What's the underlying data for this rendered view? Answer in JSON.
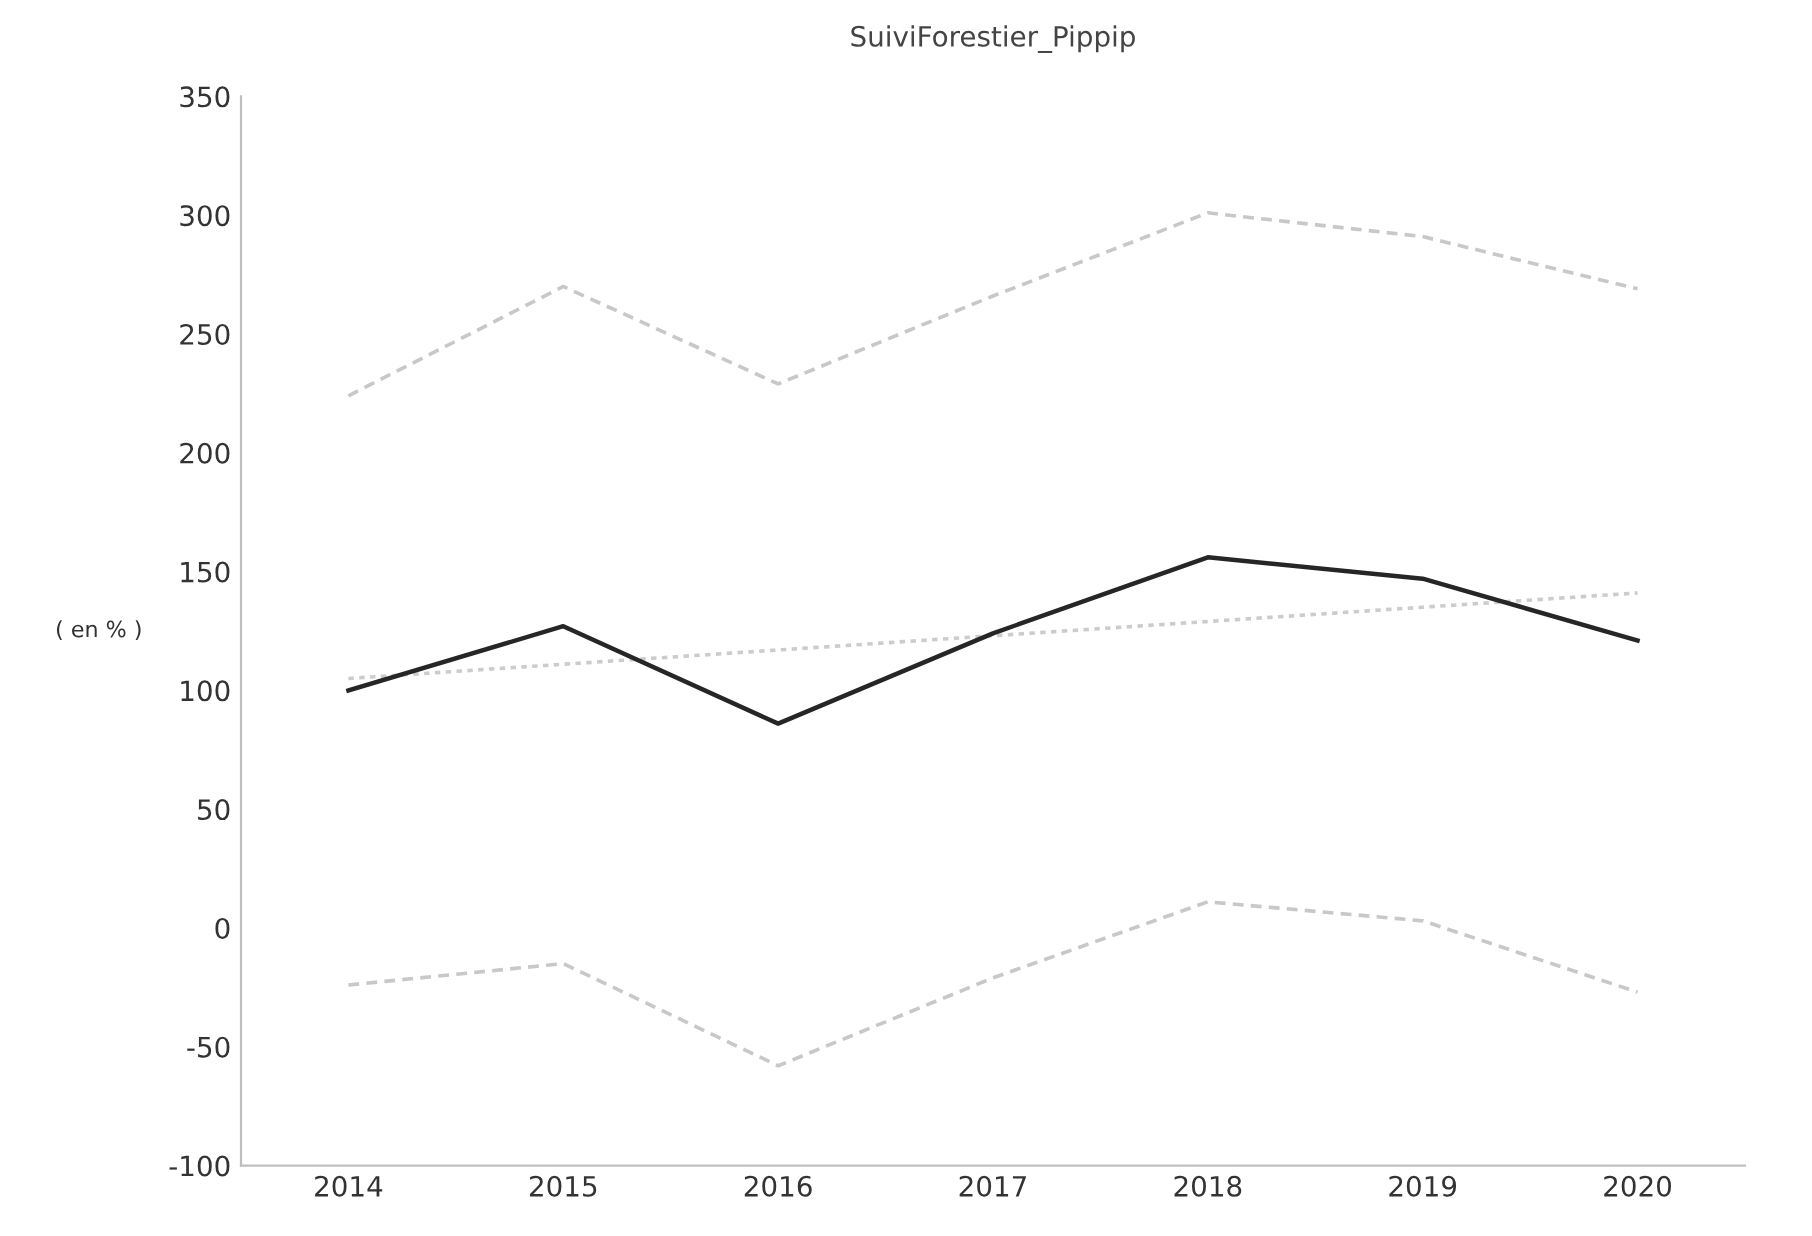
{
  "chart_data": {
    "type": "line",
    "title": "SuiviForestier_Pippip",
    "ylabel": "( en % )",
    "categories": [
      "2014",
      "2015",
      "2016",
      "2017",
      "2018",
      "2019",
      "2020"
    ],
    "series": [
      {
        "color": "#c8c8c8",
        "line_style": "dashed",
        "values": [
          224,
          270,
          229,
          266,
          301,
          291,
          269
        ]
      },
      {
        "color": "#c8c8c8",
        "line_style": "dashed",
        "values": [
          -24,
          -15,
          -58,
          -21,
          11,
          3,
          -27
        ]
      },
      {
        "color": "#cccccc",
        "line_style": "dotted",
        "values": [
          105,
          111,
          117,
          123,
          129,
          135,
          141
        ]
      },
      {
        "color": "#262626",
        "line_style": "solid",
        "values": [
          100,
          127,
          86,
          124,
          156,
          147,
          121
        ]
      }
    ],
    "ylim": [
      -100,
      350
    ],
    "yticks": [
      -100,
      -50,
      0,
      50,
      100,
      150,
      200,
      250,
      300,
      350
    ],
    "grid": false
  }
}
